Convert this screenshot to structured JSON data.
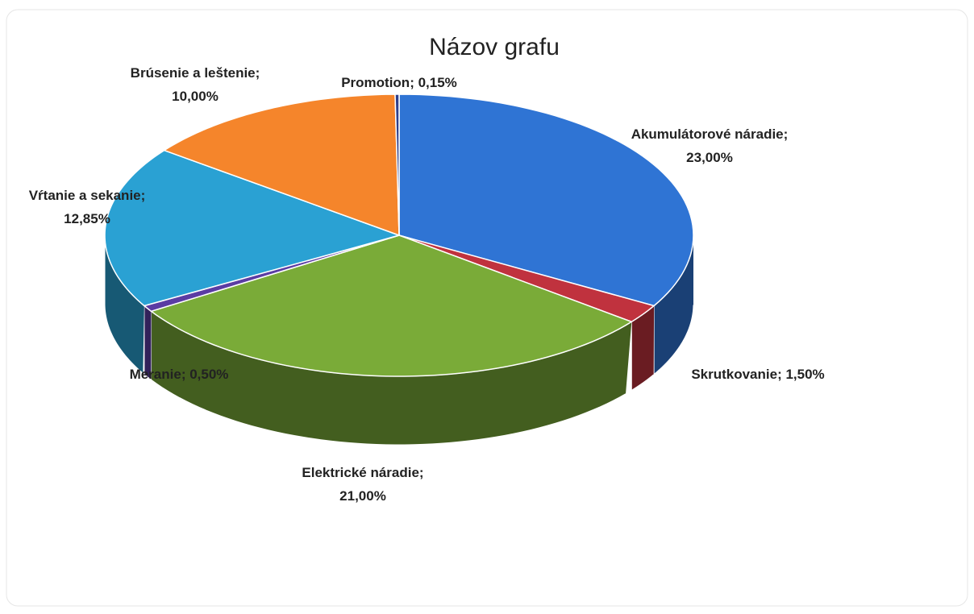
{
  "chart_data": {
    "type": "pie",
    "title": "Názov grafu",
    "categories": [
      "Akumulátorové náradie",
      "Skrutkovanie",
      "Elektrické náradie",
      "Meranie",
      "Vŕtanie a sekanie",
      "Brúsenie a leštenie",
      "Promotion"
    ],
    "values": [
      23,
      1.5,
      21,
      0.5,
      12.85,
      10,
      0.15
    ],
    "value_labels": [
      "23,00%",
      "1,50%",
      "21,00%",
      "0,50%",
      "12,85%",
      "10,00%",
      "0,15%"
    ],
    "label_separator": "; ",
    "colors": [
      "#2f74d4",
      "#c0323e",
      "#7aab38",
      "#5b3ca3",
      "#2aa1d3",
      "#f5852b",
      "#2e3f8a"
    ]
  }
}
